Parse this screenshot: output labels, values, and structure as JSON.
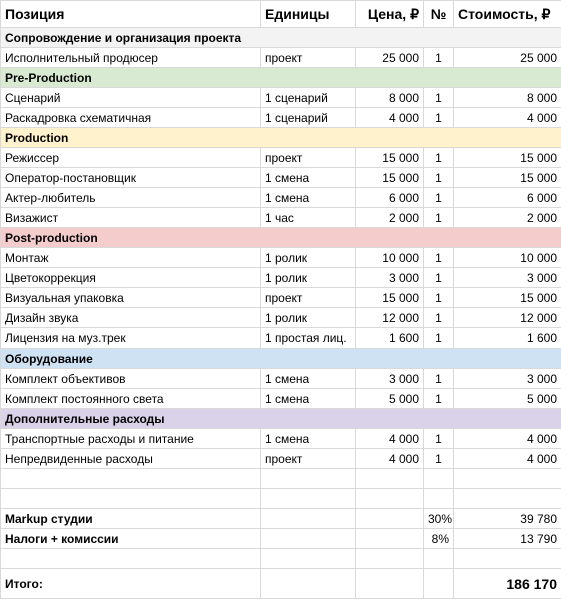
{
  "header": {
    "position": "Позиция",
    "units": "Единицы",
    "price": "Цена, ₽",
    "num": "№",
    "cost": "Стоимость, ₽"
  },
  "colors": {
    "soprovozhdenie": "#f3f3f3",
    "pre_production": "#d9ead3",
    "production": "#fff2cc",
    "post_production": "#f4cccc",
    "oborudovanie": "#cfe2f3",
    "dopolnitelnye": "#d9d2e9"
  },
  "sections": [
    {
      "title": "Сопровождение и организация проекта",
      "color": "#f3f3f3",
      "rows": [
        {
          "name": "Исполнительный продюсер",
          "unit": "проект",
          "price": "25 000",
          "num": "1",
          "cost": "25 000"
        }
      ]
    },
    {
      "title": "Pre-Production",
      "color": "#d9ead3",
      "rows": [
        {
          "name": "Сценарий",
          "unit": "1 сценарий",
          "price": "8 000",
          "num": "1",
          "cost": "8 000"
        },
        {
          "name": "Раскадровка схематичная",
          "unit": "1 сценарий",
          "price": "4 000",
          "num": "1",
          "cost": "4 000"
        }
      ]
    },
    {
      "title": "Production",
      "color": "#fff2cc",
      "rows": [
        {
          "name": "Режиссер",
          "unit": "проект",
          "price": "15 000",
          "num": "1",
          "cost": "15 000"
        },
        {
          "name": "Оператор-постановщик",
          "unit": "1 смена",
          "price": "15 000",
          "num": "1",
          "cost": "15 000"
        },
        {
          "name": "Актер-любитель",
          "unit": "1 смена",
          "price": "6 000",
          "num": "1",
          "cost": "6 000"
        },
        {
          "name": "Визажист",
          "unit": "1 час",
          "price": "2 000",
          "num": "1",
          "cost": "2 000"
        }
      ]
    },
    {
      "title": "Post-production",
      "color": "#f4cccc",
      "rows": [
        {
          "name": "Монтаж",
          "unit": "1 ролик",
          "price": "10 000",
          "num": "1",
          "cost": "10 000"
        },
        {
          "name": "Цветокоррекция",
          "unit": "1 ролик",
          "price": "3 000",
          "num": "1",
          "cost": "3 000"
        },
        {
          "name": "Визуальная упаковка",
          "unit": "проект",
          "price": "15 000",
          "num": "1",
          "cost": "15 000"
        },
        {
          "name": "Дизайн звука",
          "unit": "1 ролик",
          "price": "12 000",
          "num": "1",
          "cost": "12 000"
        },
        {
          "name": "Лицензия на муз.трек",
          "unit": "1 простая лиц.",
          "price": "1 600",
          "num": "1",
          "cost": "1 600"
        }
      ]
    },
    {
      "title": "Оборудование",
      "color": "#cfe2f3",
      "rows": [
        {
          "name": "Комплект объективов",
          "unit": "1 смена",
          "price": "3 000",
          "num": "1",
          "cost": "3 000"
        },
        {
          "name": "Комплект постоянного света",
          "unit": "1 смена",
          "price": "5 000",
          "num": "1",
          "cost": "5 000"
        }
      ]
    },
    {
      "title": "Дополнительные расходы",
      "color": "#d9d2e9",
      "rows": [
        {
          "name": "Транспортные расходы и питание",
          "unit": "1 смена",
          "price": "4 000",
          "num": "1",
          "cost": "4 000"
        },
        {
          "name": "Непредвиденные расходы",
          "unit": "проект",
          "price": "4 000",
          "num": "1",
          "cost": "4 000"
        }
      ]
    }
  ],
  "markup": {
    "label": "Markup студии",
    "percent": "30%",
    "value": "39 780"
  },
  "taxes": {
    "label": "Налоги + комиссии",
    "percent": "8%",
    "value": "13 790"
  },
  "total": {
    "label": "Итого:",
    "value": "186 170"
  }
}
